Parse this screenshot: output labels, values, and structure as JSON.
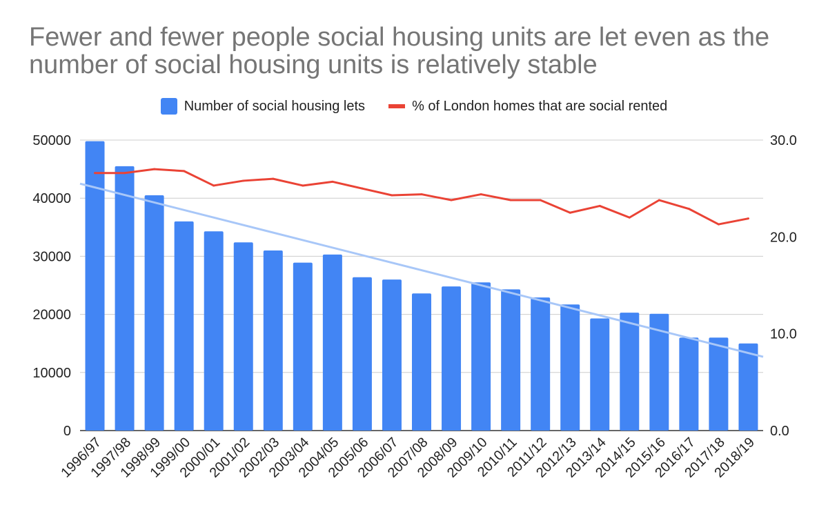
{
  "chart_data": {
    "type": "bar",
    "title": "Fewer and fewer people social housing units are let even as the number of social housing units is relatively stable",
    "categories": [
      "1996/97",
      "1997/98",
      "1998/99",
      "1999/00",
      "2000/01",
      "2001/02",
      "2002/03",
      "2003/04",
      "2004/05",
      "2005/06",
      "2006/07",
      "2007/08",
      "2008/09",
      "2009/10",
      "2010/11",
      "2011/12",
      "2012/13",
      "2013/14",
      "2014/15",
      "2015/16",
      "2016/17",
      "2017/18",
      "2018/19"
    ],
    "series": [
      {
        "name": "Number of social housing lets",
        "type": "bar",
        "axis": "left",
        "color": "#4285f4",
        "values": [
          49800,
          45500,
          40500,
          36000,
          34300,
          32400,
          31000,
          28900,
          30300,
          26400,
          26000,
          23600,
          24800,
          25500,
          24300,
          22900,
          21700,
          19300,
          20300,
          20100,
          16000,
          16000,
          15000
        ]
      },
      {
        "name": "% of London homes that are social rented",
        "type": "line",
        "axis": "right",
        "color": "#ea4335",
        "values": [
          26.6,
          26.6,
          27.0,
          26.8,
          25.3,
          25.8,
          26.0,
          25.3,
          25.7,
          25.0,
          24.3,
          24.4,
          23.8,
          24.4,
          23.8,
          23.8,
          22.5,
          23.2,
          22.0,
          23.8,
          22.9,
          21.3,
          21.9
        ]
      }
    ],
    "trendline": {
      "series": "Number of social housing lets",
      "color": "#a8c7f8",
      "start_value": 42500,
      "end_value": 12700
    },
    "y_left": {
      "ylim": [
        0,
        50000
      ],
      "ticks": [
        "0",
        "10000",
        "20000",
        "30000",
        "40000",
        "50000"
      ]
    },
    "y_right": {
      "ylim": [
        0,
        30
      ],
      "ticks": [
        "0.0",
        "10.0",
        "20.0",
        "30.0"
      ]
    },
    "xlabel": "",
    "ylabel": "",
    "legend_position": "top",
    "grid": true
  }
}
